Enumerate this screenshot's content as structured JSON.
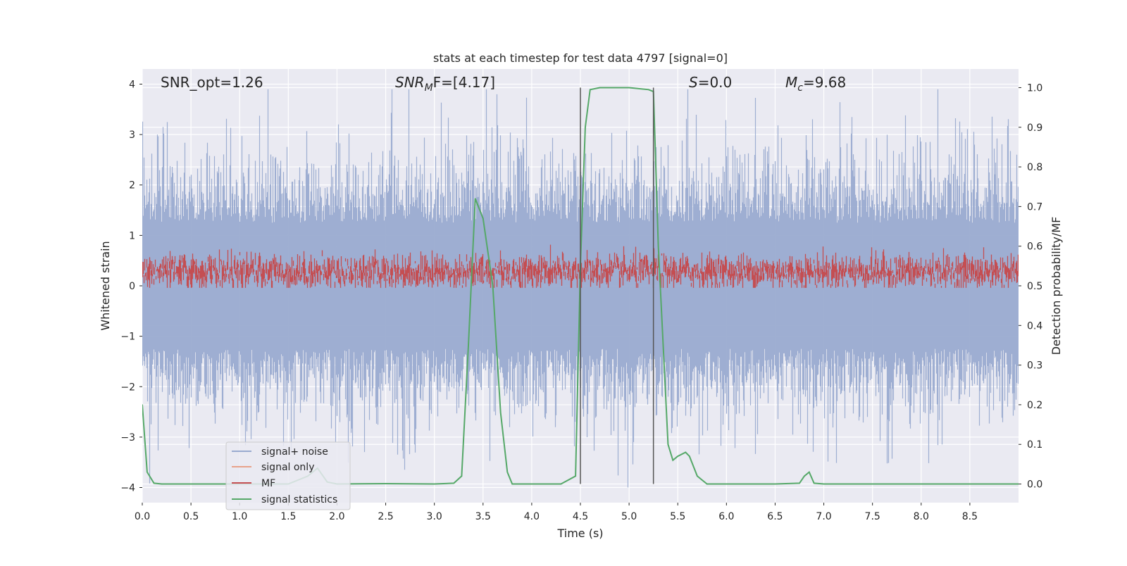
{
  "chart_data": {
    "type": "line",
    "title": "stats at each timestep for test data 4797 [signal=0]",
    "xlabel": "Time (s)",
    "ylabel_left": "Whitened strain",
    "ylabel_right": "Detection probability/MF",
    "xlim": [
      0.0,
      9.0
    ],
    "ylim_left": [
      -4.3,
      4.3
    ],
    "ylim_right": [
      -0.047,
      1.047
    ],
    "x_ticks": [
      "0.0",
      "0.5",
      "1.0",
      "1.5",
      "2.0",
      "2.5",
      "3.0",
      "3.5",
      "4.0",
      "4.5",
      "5.0",
      "5.5",
      "6.0",
      "6.5",
      "7.0",
      "7.5",
      "8.0",
      "8.5"
    ],
    "x_tick_values": [
      0.0,
      0.5,
      1.0,
      1.5,
      2.0,
      2.5,
      3.0,
      3.5,
      4.0,
      4.5,
      5.0,
      5.5,
      6.0,
      6.5,
      7.0,
      7.5,
      8.0,
      8.5
    ],
    "y_left_ticks": [
      "4",
      "3",
      "2",
      "1",
      "0",
      "−1",
      "−2",
      "−3",
      "−4"
    ],
    "y_left_tick_values": [
      4,
      3,
      2,
      1,
      0,
      -1,
      -2,
      -3,
      -4
    ],
    "y_right_ticks": [
      "1.0",
      "0.9",
      "0.8",
      "0.7",
      "0.6",
      "0.5",
      "0.4",
      "0.3",
      "0.2",
      "0.1",
      "0.0"
    ],
    "y_right_tick_values": [
      1.0,
      0.9,
      0.8,
      0.7,
      0.6,
      0.5,
      0.4,
      0.3,
      0.2,
      0.1,
      0.0
    ],
    "grid": true,
    "legend_position": "lower-left",
    "annotations": {
      "snr_opt": "SNR_opt=1.26",
      "snr_mf_sym": "SNR",
      "snr_mf_sub": "M",
      "snr_mf_rest": "F=[4.17]",
      "s_sym": "S",
      "s_rest": "=0.0",
      "mc_sym": "M",
      "mc_sub": "c",
      "mc_rest": "=9.68"
    },
    "vlines_x": [
      4.5,
      5.25
    ],
    "series": [
      {
        "name": "signal+ noise",
        "color": "#9aabd0",
        "axis": "left",
        "approx_range": [
          -4.0,
          3.9
        ],
        "style": "dense-noise"
      },
      {
        "name": "signal only",
        "color": "#e8a28a",
        "axis": "left",
        "values": []
      },
      {
        "name": "MF",
        "color": "#c44e52",
        "axis": "left",
        "approx_range": [
          0.0,
          1.0
        ],
        "style": "dense-noise"
      },
      {
        "name": "signal statistics",
        "color": "#55a868",
        "axis": "right",
        "x": [
          0.0,
          0.05,
          0.12,
          0.2,
          0.5,
          1.0,
          1.5,
          1.7,
          1.8,
          1.9,
          2.0,
          2.5,
          3.0,
          3.2,
          3.28,
          3.35,
          3.42,
          3.5,
          3.6,
          3.68,
          3.75,
          3.8,
          4.0,
          4.3,
          4.45,
          4.5,
          4.55,
          4.6,
          4.7,
          5.0,
          5.2,
          5.25,
          5.3,
          5.4,
          5.45,
          5.5,
          5.58,
          5.62,
          5.7,
          5.8,
          6.0,
          6.5,
          6.75,
          6.8,
          6.85,
          6.9,
          7.0,
          8.0,
          9.0
        ],
        "y": [
          0.2,
          0.03,
          0.002,
          0.0,
          0.0,
          0.0,
          0.0,
          0.02,
          0.04,
          0.005,
          0.0,
          0.001,
          0.0,
          0.002,
          0.02,
          0.35,
          0.72,
          0.67,
          0.5,
          0.18,
          0.03,
          0.0,
          0.0,
          0.0,
          0.02,
          0.55,
          0.9,
          0.995,
          1.0,
          1.0,
          0.995,
          0.99,
          0.6,
          0.1,
          0.06,
          0.07,
          0.08,
          0.07,
          0.02,
          0.0,
          0.0,
          0.0,
          0.002,
          0.02,
          0.03,
          0.002,
          0.0,
          0.0,
          0.0
        ]
      }
    ]
  }
}
